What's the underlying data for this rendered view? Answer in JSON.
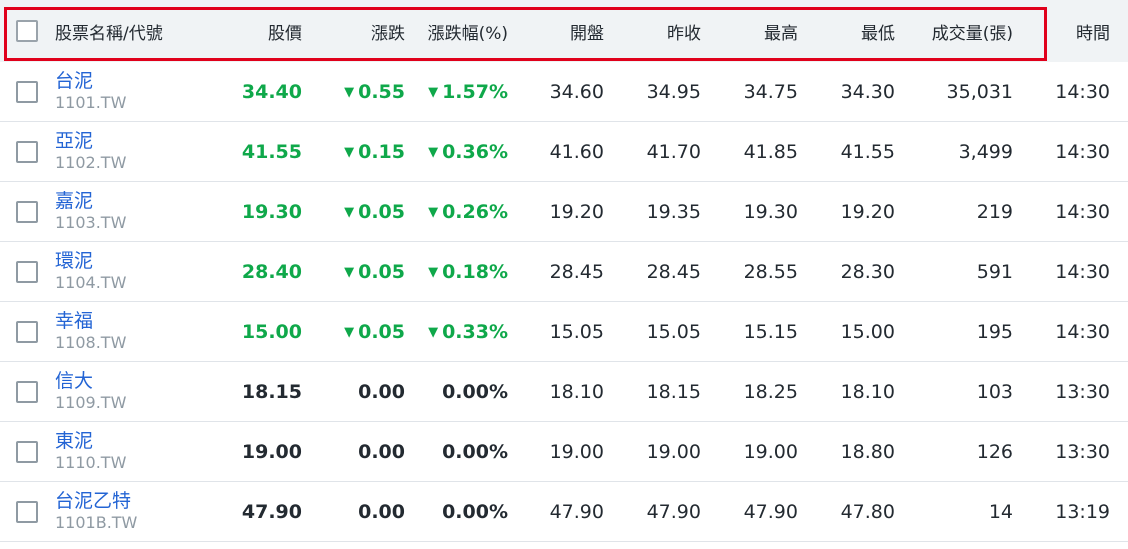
{
  "columns": {
    "name": "股票名稱/代號",
    "price": "股價",
    "change": "漲跌",
    "change_pct": "漲跌幅(%)",
    "open": "開盤",
    "prev_close": "昨收",
    "high": "最高",
    "low": "最低",
    "volume": "成交量(張)",
    "time": "時間"
  },
  "colors": {
    "up": "#0fa84a",
    "link": "#2364d4",
    "highlight": "#e0001b"
  },
  "rows": [
    {
      "name": "台泥",
      "code": "1101.TW",
      "price": "34.40",
      "change": "0.55",
      "change_pct": "1.57%",
      "dir": "down",
      "open": "34.60",
      "prev_close": "34.95",
      "high": "34.75",
      "low": "34.30",
      "volume": "35,031",
      "time": "14:30"
    },
    {
      "name": "亞泥",
      "code": "1102.TW",
      "price": "41.55",
      "change": "0.15",
      "change_pct": "0.36%",
      "dir": "down",
      "open": "41.60",
      "prev_close": "41.70",
      "high": "41.85",
      "low": "41.55",
      "volume": "3,499",
      "time": "14:30"
    },
    {
      "name": "嘉泥",
      "code": "1103.TW",
      "price": "19.30",
      "change": "0.05",
      "change_pct": "0.26%",
      "dir": "down",
      "open": "19.20",
      "prev_close": "19.35",
      "high": "19.30",
      "low": "19.20",
      "volume": "219",
      "time": "14:30"
    },
    {
      "name": "環泥",
      "code": "1104.TW",
      "price": "28.40",
      "change": "0.05",
      "change_pct": "0.18%",
      "dir": "down",
      "open": "28.45",
      "prev_close": "28.45",
      "high": "28.55",
      "low": "28.30",
      "volume": "591",
      "time": "14:30"
    },
    {
      "name": "幸福",
      "code": "1108.TW",
      "price": "15.00",
      "change": "0.05",
      "change_pct": "0.33%",
      "dir": "down",
      "open": "15.05",
      "prev_close": "15.05",
      "high": "15.15",
      "low": "15.00",
      "volume": "195",
      "time": "14:30"
    },
    {
      "name": "信大",
      "code": "1109.TW",
      "price": "18.15",
      "change": "0.00",
      "change_pct": "0.00%",
      "dir": "flat",
      "open": "18.10",
      "prev_close": "18.15",
      "high": "18.25",
      "low": "18.10",
      "volume": "103",
      "time": "13:30"
    },
    {
      "name": "東泥",
      "code": "1110.TW",
      "price": "19.00",
      "change": "0.00",
      "change_pct": "0.00%",
      "dir": "flat",
      "open": "19.00",
      "prev_close": "19.00",
      "high": "19.00",
      "low": "18.80",
      "volume": "126",
      "time": "13:30"
    },
    {
      "name": "台泥乙特",
      "code": "1101B.TW",
      "price": "47.90",
      "change": "0.00",
      "change_pct": "0.00%",
      "dir": "flat",
      "open": "47.90",
      "prev_close": "47.90",
      "high": "47.90",
      "low": "47.80",
      "volume": "14",
      "time": "13:19"
    }
  ]
}
